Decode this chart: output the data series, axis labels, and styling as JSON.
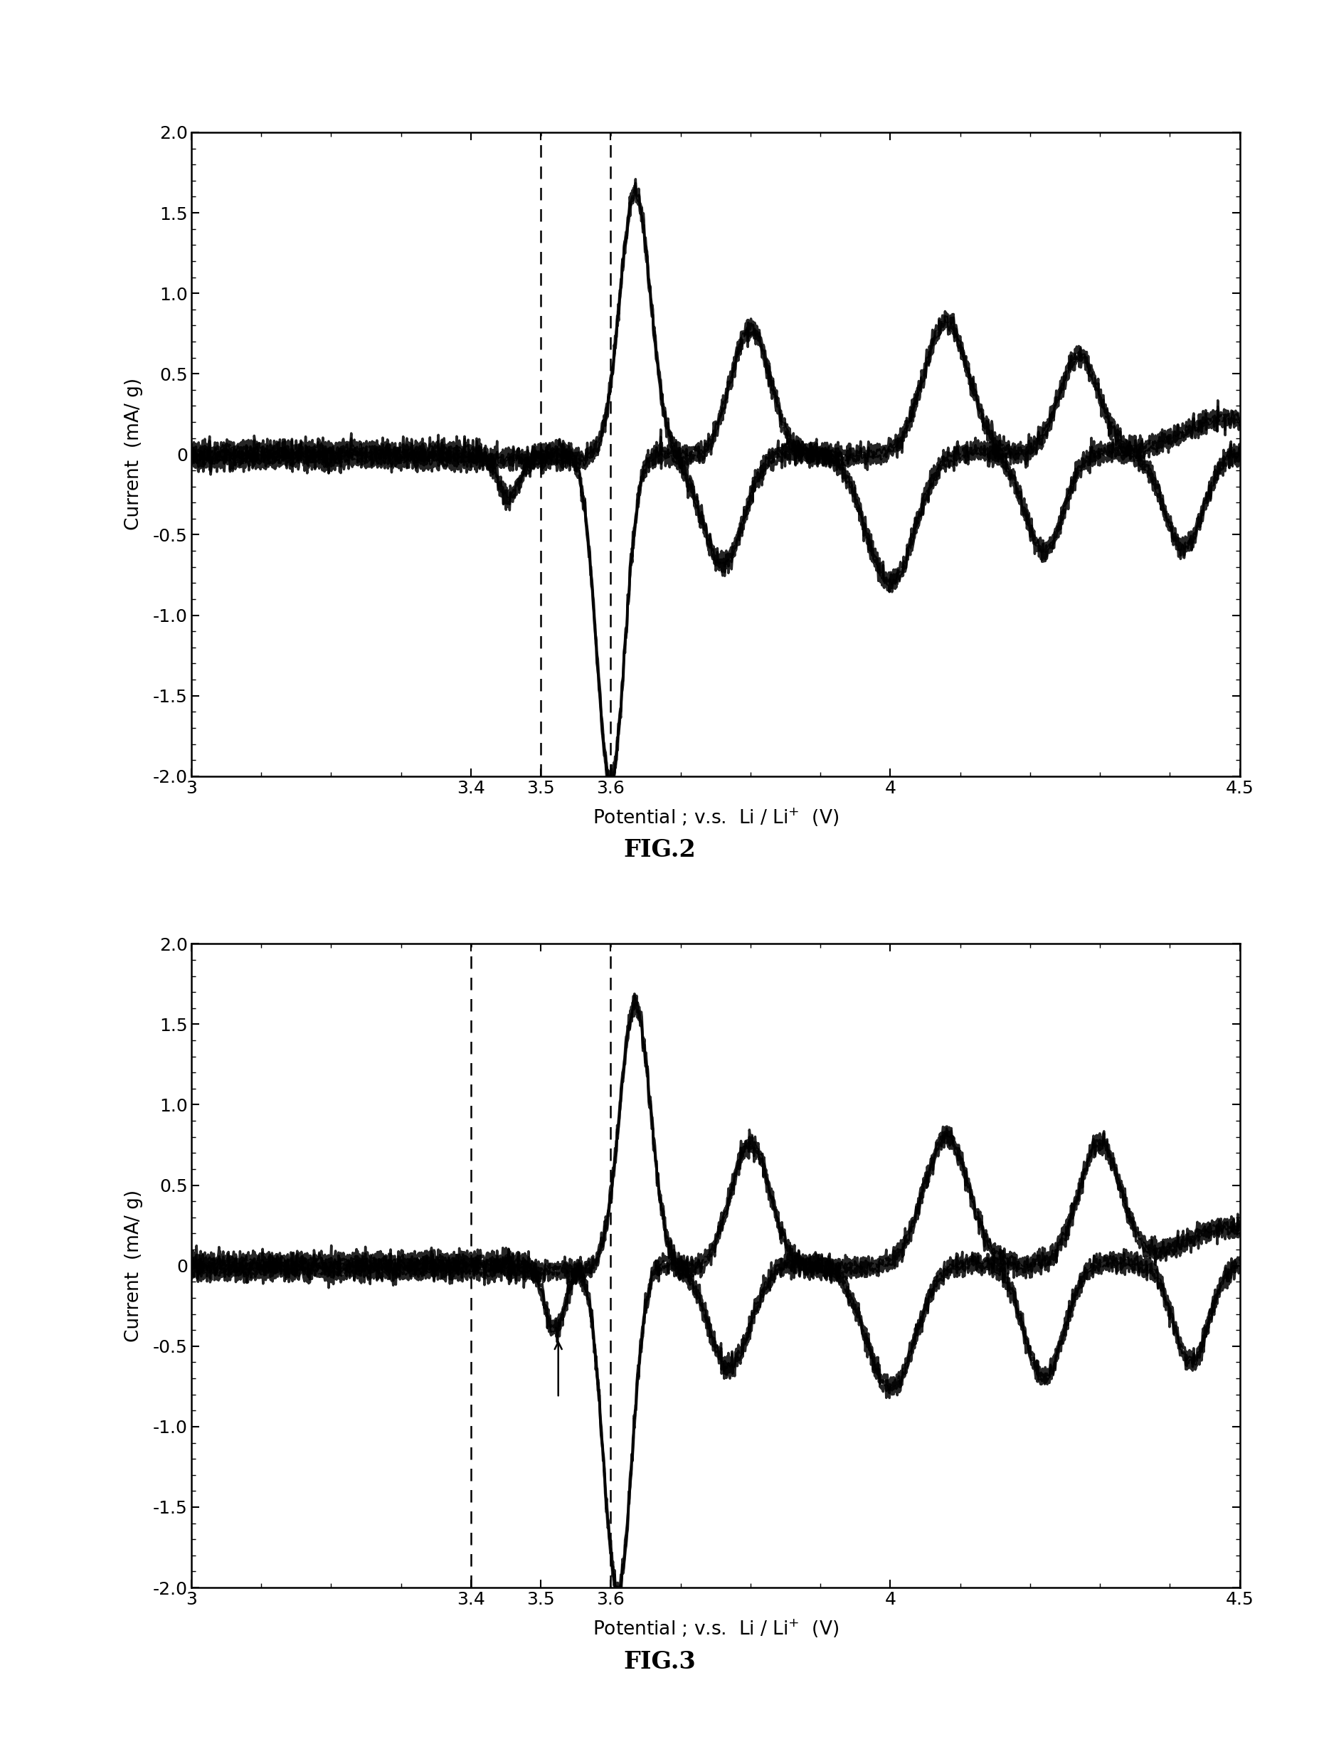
{
  "fig2_dashed_lines": [
    3.5,
    3.6
  ],
  "fig3_dashed_lines": [
    3.4,
    3.6
  ],
  "xlim": [
    3.0,
    4.5
  ],
  "ylim": [
    -2.0,
    2.0
  ],
  "yticks": [
    -2.0,
    -1.5,
    -1.0,
    -0.5,
    0.0,
    0.5,
    1.0,
    1.5,
    2.0
  ],
  "ytick_labels": [
    "-2.0",
    "-1.5",
    "-1.0",
    "-0.5",
    "0",
    "0.5",
    "1.0",
    "1.5",
    "2.0"
  ],
  "xticks": [
    3.0,
    3.4,
    3.5,
    3.6,
    4.0,
    4.5
  ],
  "xtick_labels": [
    "3",
    "3.4",
    "3.5",
    "3.6",
    "4",
    "4.5"
  ],
  "xlabel": "Potential ; v.s.  Li / Li$^{+}$  (V)",
  "ylabel": "Current  (mA/ g)",
  "fig2_label": "FIG.2",
  "fig3_label": "FIG.3",
  "background": "#ffffff",
  "line_color": "#000000",
  "lw": 2.5
}
